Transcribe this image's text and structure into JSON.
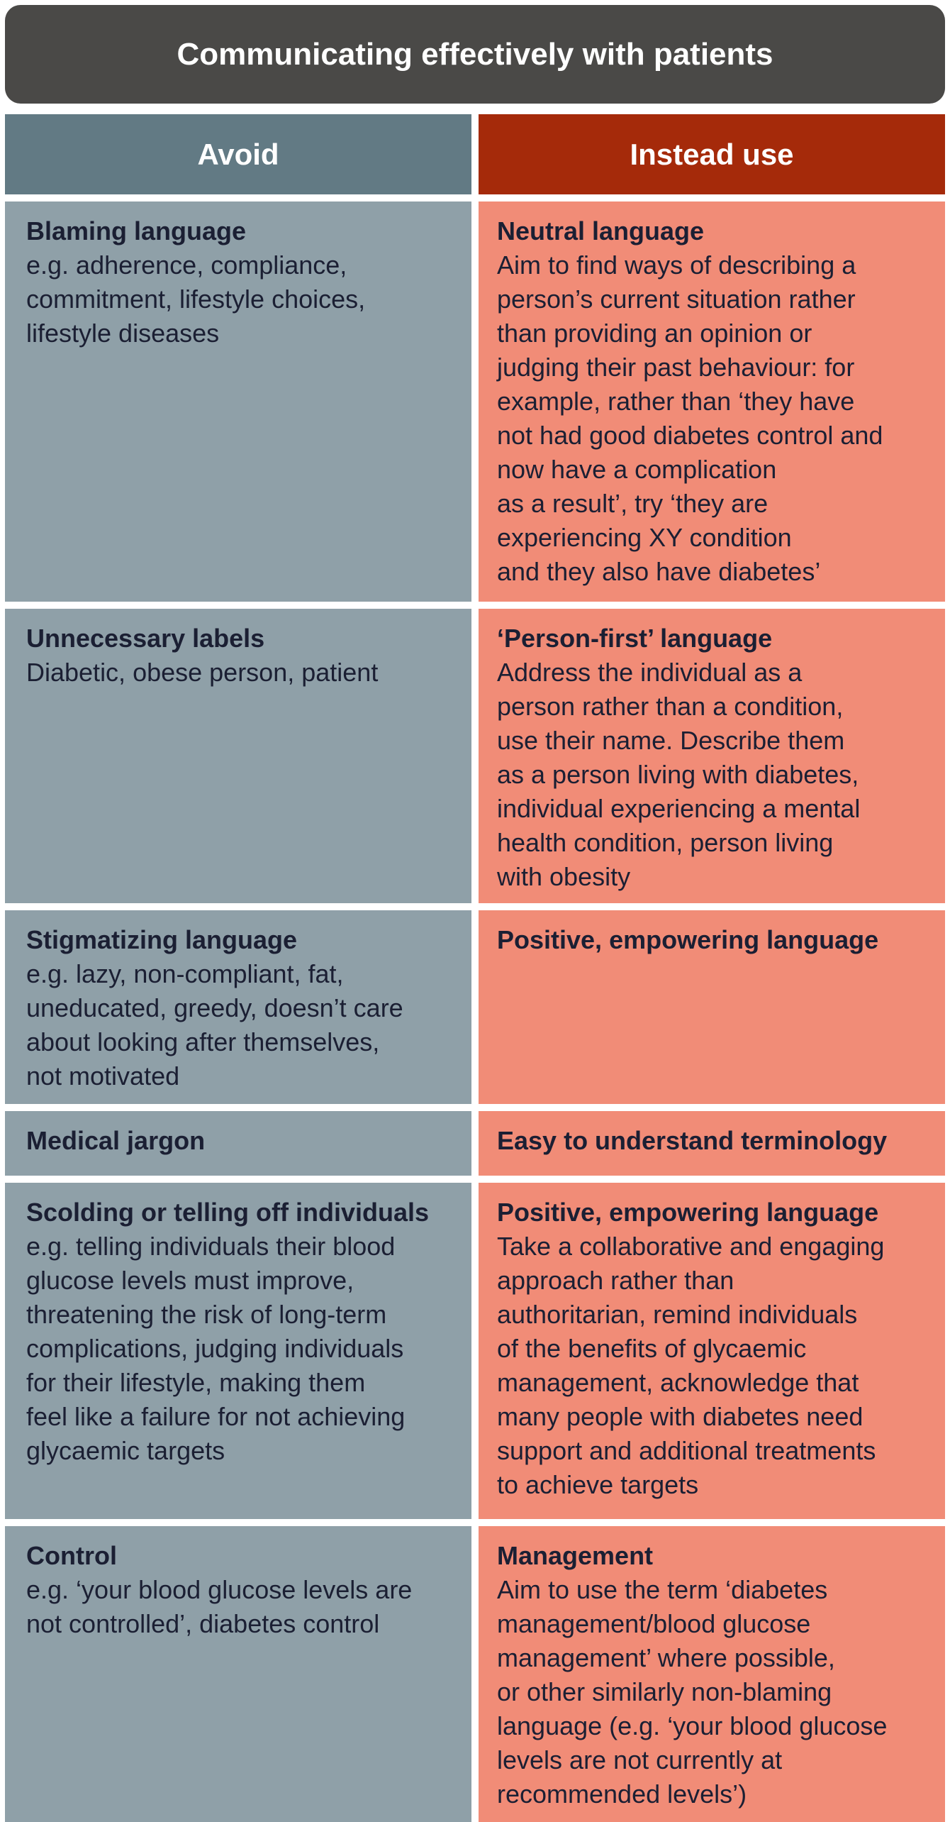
{
  "title": "Communicating effectively with patients",
  "headers": {
    "avoid": "Avoid",
    "instead": "Instead use"
  },
  "rows": [
    {
      "avoid_title": "Blaming language",
      "avoid_body": "e.g. adherence, compliance,\ncommitment, lifestyle choices,\nlifestyle diseases",
      "instead_title": "Neutral language",
      "instead_body": "Aim to find ways of describing a\nperson’s current situation rather\nthan providing an opinion or\njudging their past behaviour: for\nexample, rather than ‘they have\nnot had good diabetes control and\nnow have a complication\nas a result’, try ‘they are\nexperiencing XY condition\nand they also have diabetes’"
    },
    {
      "avoid_title": "Unnecessary labels",
      "avoid_body": "Diabetic, obese person, patient",
      "instead_title": "‘Person-first’ language",
      "instead_body": "Address the individual as a\nperson rather than a condition,\nuse their name. Describe them\nas a person living with diabetes,\nindividual experiencing a mental\nhealth condition, person living\nwith obesity"
    },
    {
      "avoid_title": "Stigmatizing language",
      "avoid_body": "e.g. lazy, non-compliant, fat,\nuneducated, greedy, doesn’t care\nabout looking after themselves,\nnot motivated",
      "instead_title": "Positive, empowering language",
      "instead_body": ""
    },
    {
      "avoid_title": "Medical jargon",
      "avoid_body": "",
      "instead_title": "Easy to understand terminology",
      "instead_body": ""
    },
    {
      "avoid_title": "Scolding or telling off individuals",
      "avoid_body": "e.g. telling individuals their blood\nglucose levels must improve,\nthreatening the risk of long-term\ncomplications, judging individuals\nfor their lifestyle, making them\nfeel like a failure for not achieving\nglycaemic targets",
      "instead_title": "Positive, empowering language",
      "instead_body": "Take a collaborative and engaging\napproach rather than\nauthoritarian, remind individuals\nof the benefits of glycaemic\nmanagement, acknowledge that\nmany people with diabetes need\nsupport and additional treatments\nto achieve targets"
    },
    {
      "avoid_title": "Control",
      "avoid_body": "e.g. ‘your blood glucose levels are\nnot controlled’, diabetes control",
      "instead_title": "Management",
      "instead_body": "Aim to use the term ‘diabetes\nmanagement/blood glucose\nmanagement’ where possible,\nor other similarly non-blaming\nlanguage (e.g. ‘your blood glucose\nlevels are not currently at\nrecommended levels’)"
    }
  ],
  "colors": {
    "title_bg": "#4a4947",
    "avoid_header": "#627a84",
    "instead_header": "#a52a0a",
    "avoid_cell": "#8fa0a8",
    "instead_cell": "#f18c77",
    "text": "#1b1f33"
  }
}
